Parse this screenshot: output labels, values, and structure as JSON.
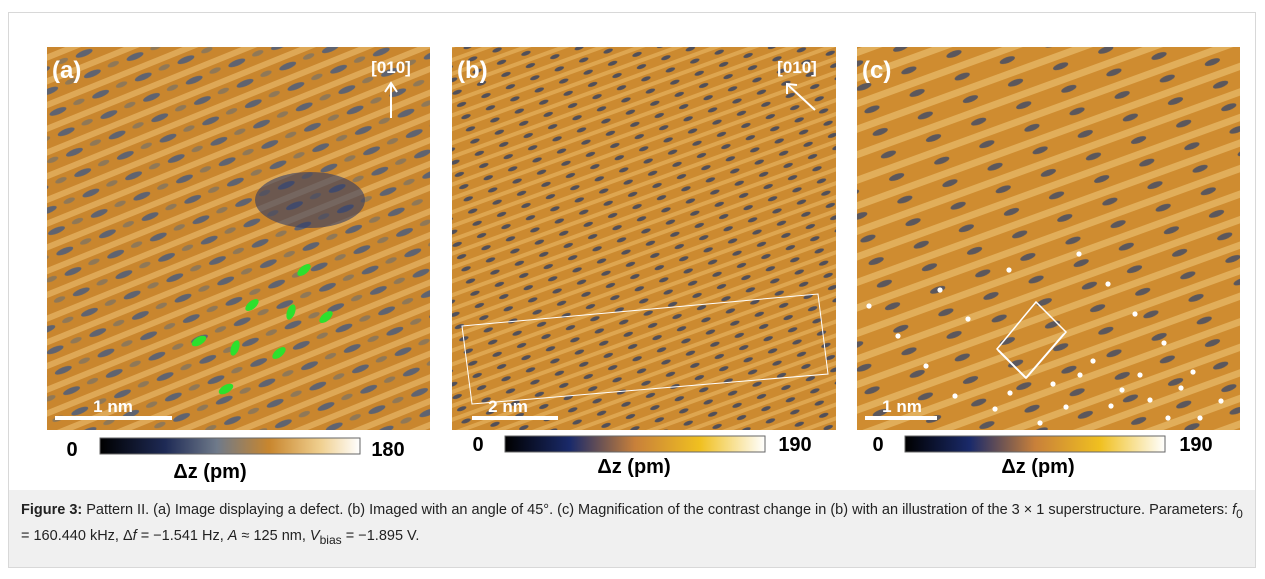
{
  "panels": [
    {
      "label": "(a)",
      "direction": "[010]",
      "scale": "1 nm",
      "cbar_min": 0,
      "cbar_max": 180,
      "cbar_label": "Δz (pm)"
    },
    {
      "label": "(b)",
      "direction": "[010]",
      "scale": "2 nm",
      "cbar_min": 0,
      "cbar_max": 190,
      "cbar_label": "Δz (pm)"
    },
    {
      "label": "(c)",
      "scale": "1 nm",
      "cbar_min": 0,
      "cbar_max": 190,
      "cbar_label": "Δz (pm)"
    }
  ],
  "caption": {
    "label": "Figure 3:",
    "parts": [
      " Pattern II. (a) Image displaying a defect. (b) Imaged with an angle of 45°. (c) Magnification of the contrast change in (b) with an illustration of the 3 × 1 superstructure. Parameters: ",
      "f",
      "0",
      " = 160.440 kHz, Δ",
      "f",
      " = −1.541 Hz, ",
      "A",
      " ≈ 125 nm, ",
      "V",
      "bias",
      " = −1.895 V."
    ]
  }
}
